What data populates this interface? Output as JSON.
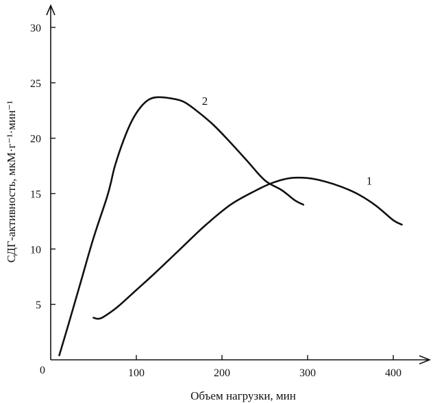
{
  "chart_data": {
    "type": "line",
    "xlabel": "Объем нагрузки, мин",
    "ylabel": "СДГ-активность, мкМ·г⁻¹·мин⁻¹",
    "origin_label": "0",
    "xlim": [
      0,
      440
    ],
    "ylim": [
      0,
      31
    ],
    "x_ticks": [
      100,
      200,
      300,
      400
    ],
    "y_ticks": [
      5,
      10,
      15,
      20,
      25,
      30
    ],
    "grid": false,
    "legend": "none",
    "series": [
      {
        "name": "1",
        "points": [
          [
            50,
            3.8
          ],
          [
            55,
            3.7
          ],
          [
            60,
            3.8
          ],
          [
            70,
            4.3
          ],
          [
            80,
            4.9
          ],
          [
            100,
            6.3
          ],
          [
            120,
            7.7
          ],
          [
            150,
            9.9
          ],
          [
            180,
            12.1
          ],
          [
            210,
            14.0
          ],
          [
            240,
            15.3
          ],
          [
            260,
            16.0
          ],
          [
            280,
            16.4
          ],
          [
            300,
            16.4
          ],
          [
            320,
            16.1
          ],
          [
            340,
            15.6
          ],
          [
            360,
            14.9
          ],
          [
            380,
            13.9
          ],
          [
            400,
            12.6
          ],
          [
            410,
            12.2
          ]
        ]
      },
      {
        "name": "2",
        "points": [
          [
            10,
            0.4
          ],
          [
            20,
            3.0
          ],
          [
            35,
            7.0
          ],
          [
            50,
            11.0
          ],
          [
            65,
            14.5
          ],
          [
            70,
            15.9
          ],
          [
            75,
            17.5
          ],
          [
            85,
            19.8
          ],
          [
            95,
            21.6
          ],
          [
            105,
            22.8
          ],
          [
            115,
            23.5
          ],
          [
            125,
            23.7
          ],
          [
            140,
            23.6
          ],
          [
            155,
            23.3
          ],
          [
            170,
            22.5
          ],
          [
            190,
            21.2
          ],
          [
            210,
            19.6
          ],
          [
            230,
            17.9
          ],
          [
            250,
            16.2
          ],
          [
            270,
            15.3
          ],
          [
            285,
            14.4
          ],
          [
            295,
            14.0
          ]
        ]
      }
    ],
    "series_label_positions_data": [
      {
        "name": "1",
        "x": 372,
        "y": 15.8
      },
      {
        "name": "2",
        "x": 180,
        "y": 23.0
      }
    ]
  }
}
